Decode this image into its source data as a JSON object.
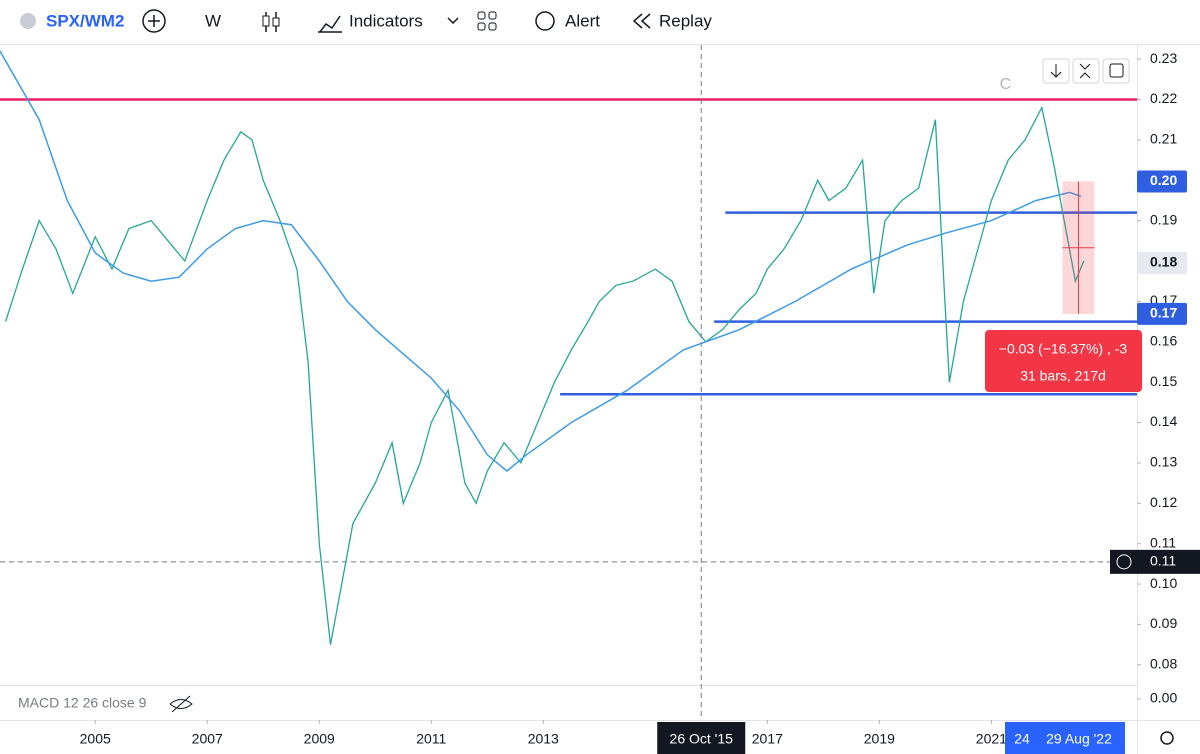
{
  "toolbar": {
    "symbol": "SPX/WM2",
    "interval": "W",
    "indicators": "Indicators",
    "alert": "Alert",
    "replay": "Replay"
  },
  "chart_data": {
    "type": "line",
    "xlim": [
      2003.3,
      2023.6
    ],
    "xticks": [
      2005,
      2007,
      2009,
      2011,
      2013,
      2017,
      2019,
      2021
    ],
    "ylim": [
      0.075,
      0.2335
    ],
    "yticks": [
      0.08,
      0.09,
      {
        "value": 0.1,
        "label": "0.10"
      },
      0.11,
      0.12,
      0.13,
      0.14,
      0.15,
      0.16,
      0.17,
      0.18,
      0.19,
      0.21,
      0.22,
      0.23
    ],
    "series": [
      {
        "name": "SPX/WM2",
        "color": "#26a69a",
        "x": [
          2003.4,
          2003.7,
          2004.0,
          2004.3,
          2004.6,
          2005.0,
          2005.3,
          2005.6,
          2006.0,
          2006.3,
          2006.6,
          2007.0,
          2007.3,
          2007.6,
          2007.8,
          2008.0,
          2008.3,
          2008.6,
          2008.8,
          2009.0,
          2009.2,
          2009.4,
          2009.6,
          2010.0,
          2010.3,
          2010.5,
          2010.8,
          2011.0,
          2011.3,
          2011.6,
          2011.8,
          2012.0,
          2012.3,
          2012.6,
          2012.9,
          2013.2,
          2013.5,
          2013.8,
          2014.0,
          2014.3,
          2014.6,
          2015.0,
          2015.3,
          2015.6,
          2015.9,
          2016.2,
          2016.5,
          2016.8,
          2017.0,
          2017.3,
          2017.6,
          2017.9,
          2018.1,
          2018.4,
          2018.7,
          2018.9,
          2019.1,
          2019.4,
          2019.7,
          2020.0,
          2020.15,
          2020.25,
          2020.5,
          2020.8,
          2021.0,
          2021.3,
          2021.6,
          2021.9,
          2022.1,
          2022.3,
          2022.5,
          2022.65
        ],
        "values": [
          0.165,
          0.178,
          0.19,
          0.183,
          0.172,
          0.186,
          0.178,
          0.188,
          0.19,
          0.185,
          0.18,
          0.195,
          0.205,
          0.212,
          0.21,
          0.2,
          0.19,
          0.178,
          0.155,
          0.11,
          0.085,
          0.1,
          0.115,
          0.125,
          0.135,
          0.12,
          0.13,
          0.14,
          0.148,
          0.125,
          0.12,
          0.128,
          0.135,
          0.13,
          0.14,
          0.15,
          0.158,
          0.165,
          0.17,
          0.174,
          0.175,
          0.178,
          0.175,
          0.165,
          0.16,
          0.163,
          0.168,
          0.172,
          0.178,
          0.183,
          0.19,
          0.2,
          0.195,
          0.198,
          0.205,
          0.172,
          0.19,
          0.195,
          0.198,
          0.215,
          0.175,
          0.15,
          0.17,
          0.185,
          0.195,
          0.205,
          0.21,
          0.218,
          0.205,
          0.19,
          0.175,
          0.18
        ]
      },
      {
        "name": "MA",
        "color": "#3d9be9",
        "x": [
          2003.3,
          2004.0,
          2004.5,
          2005.0,
          2005.5,
          2006.0,
          2006.5,
          2007.0,
          2007.5,
          2008.0,
          2008.5,
          2009.0,
          2009.5,
          2010.0,
          2010.5,
          2011.0,
          2011.5,
          2012.0,
          2012.35,
          2012.7,
          2013.5,
          2014.5,
          2015.5,
          2016.5,
          2017.5,
          2018.5,
          2019.5,
          2020.2,
          2021.0,
          2021.8,
          2022.4,
          2022.6
        ],
        "values": [
          0.232,
          0.215,
          0.195,
          0.182,
          0.177,
          0.175,
          0.176,
          0.183,
          0.188,
          0.19,
          0.189,
          0.18,
          0.17,
          0.163,
          0.157,
          0.151,
          0.143,
          0.132,
          0.128,
          0.132,
          0.14,
          0.148,
          0.158,
          0.163,
          0.17,
          0.178,
          0.184,
          0.187,
          0.19,
          0.195,
          0.197,
          0.196
        ]
      }
    ],
    "levels": [
      {
        "value": 0.22,
        "color": "#e91e63"
      },
      {
        "value": 0.192,
        "from": 2016.25,
        "color": "#2f5fe0"
      },
      {
        "value": 0.165,
        "from": 2016.05,
        "color": "#2f5fe0"
      },
      {
        "value": 0.147,
        "from": 2013.3,
        "color": "#2f5fe0"
      }
    ],
    "price_labels": [
      {
        "value": 0.1997,
        "label": "0.20",
        "color": "#2f5fe0"
      },
      {
        "value": 0.1795,
        "label": "0.18",
        "color": "#e6e9ef"
      },
      {
        "value": 0.1669,
        "label": "0.17",
        "color": "#2f5fe0"
      }
    ],
    "crosshair": {
      "x": 2015.82,
      "x_label": "26 Oct '15",
      "y": 0.1055,
      "y_label": "0.11"
    },
    "range": {
      "start_label": "24",
      "end_label": "29 Aug '22"
    },
    "measure": {
      "from": 2022.27,
      "to": 2022.84,
      "top": 0.1997,
      "bottom": 0.1669,
      "change": "−0.03 (−16.37%) , -3",
      "span": "31 bars, 217d"
    },
    "annotations": [
      {
        "text": "C",
        "x": 2021.25,
        "y": 0.2237
      }
    ],
    "macd": {
      "label": "MACD 12 26 close 9",
      "yticks": [
        {
          "value": 0,
          "label": "0.00"
        }
      ]
    }
  }
}
